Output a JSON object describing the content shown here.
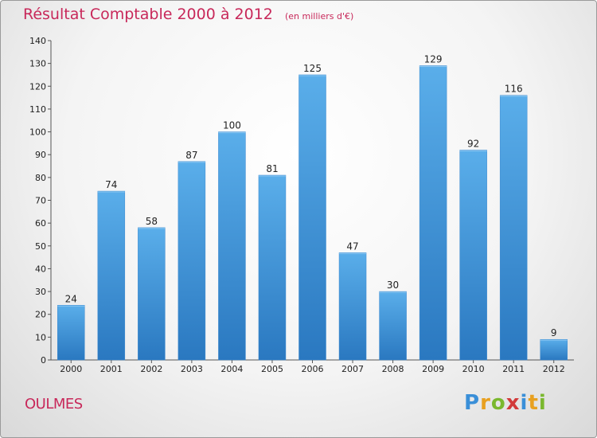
{
  "chart_data": {
    "type": "bar",
    "title": "Résultat Comptable 2000 à 2012",
    "subtitle": "(en milliers d'€)",
    "categories": [
      "2000",
      "2001",
      "2002",
      "2003",
      "2004",
      "2005",
      "2006",
      "2007",
      "2008",
      "2009",
      "2010",
      "2011",
      "2012"
    ],
    "values": [
      24,
      74,
      58,
      87,
      100,
      81,
      125,
      47,
      30,
      129,
      92,
      116,
      9
    ],
    "ylim": [
      0,
      140
    ],
    "yticks": [
      0,
      10,
      20,
      30,
      40,
      50,
      60,
      70,
      80,
      90,
      100,
      110,
      120,
      130,
      140
    ],
    "grid": false,
    "legend": "none",
    "bar_color": "#4a9fe0"
  },
  "footer": {
    "city": "OULMES",
    "brand": {
      "letters": [
        "P",
        "r",
        "o",
        "x",
        "i",
        "t",
        "i"
      ],
      "colors": [
        "#3a8fd8",
        "#e8a020",
        "#7ab82e",
        "#d23a3a",
        "#3a8fd8",
        "#e8a020",
        "#7ab82e"
      ]
    }
  }
}
